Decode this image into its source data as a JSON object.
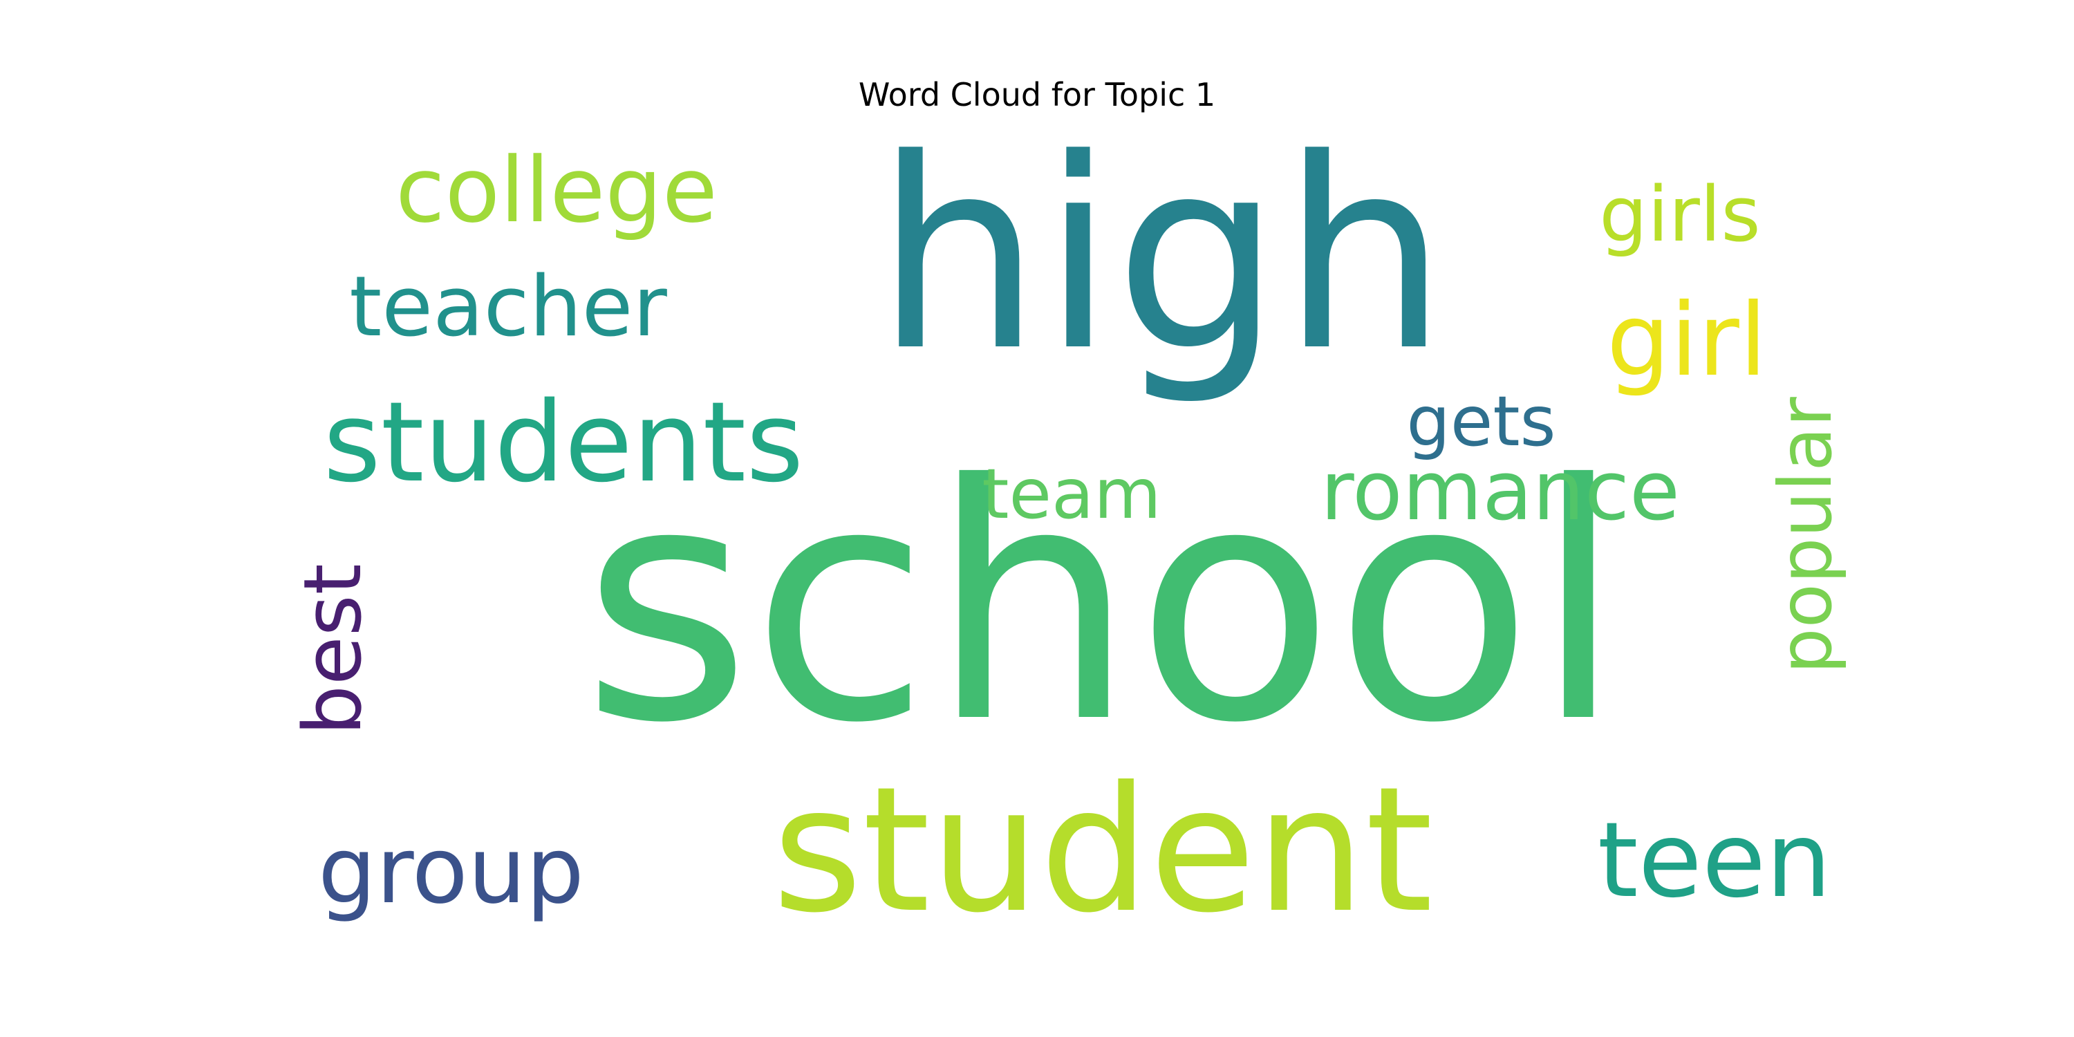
{
  "title": "Word Cloud for Topic 1",
  "words": [
    {
      "text": "school",
      "color": "#41bd71",
      "rotated": false
    },
    {
      "text": "high",
      "color": "#26828e",
      "rotated": false
    },
    {
      "text": "student",
      "color": "#b5dd2b",
      "rotated": false
    },
    {
      "text": "students",
      "color": "#22a785",
      "rotated": false
    },
    {
      "text": "college",
      "color": "#a0da39",
      "rotated": false
    },
    {
      "text": "teacher",
      "color": "#21918c",
      "rotated": false
    },
    {
      "text": "girls",
      "color": "#b8de29",
      "rotated": false
    },
    {
      "text": "girl",
      "color": "#ece51b",
      "rotated": false
    },
    {
      "text": "gets",
      "color": "#2e6f8e",
      "rotated": false
    },
    {
      "text": "team",
      "color": "#5ec962",
      "rotated": false
    },
    {
      "text": "romance",
      "color": "#52c569",
      "rotated": false
    },
    {
      "text": "popular",
      "color": "#7ad151",
      "rotated": true
    },
    {
      "text": "best",
      "color": "#481f70",
      "rotated": true
    },
    {
      "text": "group",
      "color": "#3b528b",
      "rotated": false
    },
    {
      "text": "teen",
      "color": "#1fa187",
      "rotated": false
    }
  ]
}
